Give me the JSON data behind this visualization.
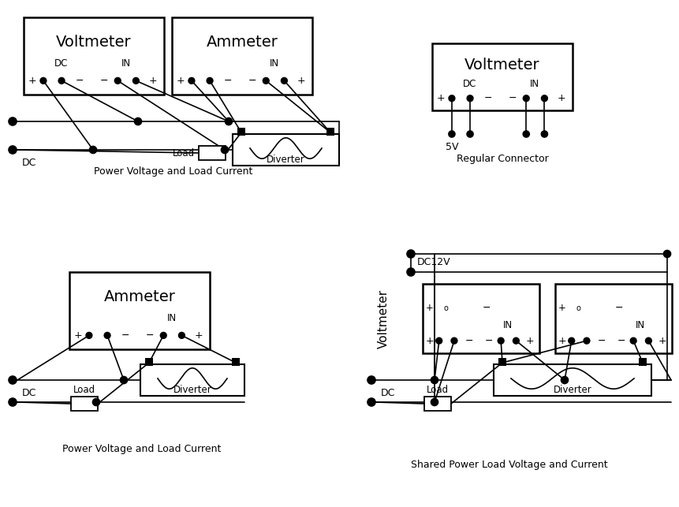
{
  "bg": "#ffffff",
  "captions": {
    "tl": "Power Voltage and Load Current",
    "tr": "Regular Connector",
    "bl": "Power Voltage and Load Current",
    "br": "Shared Power Load Voltage and Current"
  },
  "labels": {
    "voltmeter": "Voltmeter",
    "ammeter": "Ammeter",
    "dc": "DC",
    "in": "IN",
    "load": "Load",
    "diverter": "Diverter",
    "5v": "5V",
    "dc12v": "DC12V"
  },
  "pin_labels": {
    "plus": "+",
    "minus": "−"
  }
}
